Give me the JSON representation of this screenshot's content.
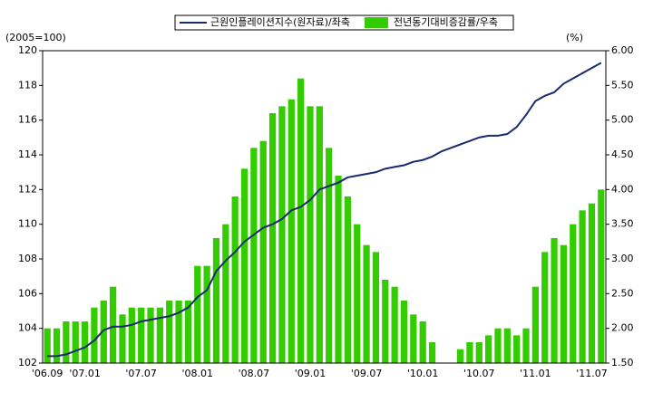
{
  "chart_data": {
    "type": "bar_line",
    "y_axis_label": "(2005=100)",
    "y2_axis_label": "(%)",
    "categories": [
      "'06.09",
      null,
      null,
      null,
      "'07.01",
      null,
      null,
      null,
      null,
      null,
      "'07.07",
      null,
      null,
      null,
      null,
      null,
      "'08.01",
      null,
      null,
      null,
      null,
      null,
      "'08.07",
      null,
      null,
      null,
      null,
      null,
      "'09.01",
      null,
      null,
      null,
      null,
      null,
      "'09.07",
      null,
      null,
      null,
      null,
      null,
      "'10.01",
      null,
      null,
      null,
      null,
      null,
      "'10.07",
      null,
      null,
      null,
      null,
      null,
      "'11.01",
      null,
      null,
      null,
      null,
      null,
      "'11.07",
      null
    ],
    "series": [
      {
        "name": "근원인플레이션지수(원자료)/좌축",
        "type": "line",
        "color": "#1a2a6c",
        "axis": "y",
        "values": [
          102.4,
          102.4,
          102.5,
          102.7,
          102.9,
          103.3,
          103.9,
          104.1,
          104.1,
          104.2,
          104.4,
          104.5,
          104.6,
          104.7,
          104.9,
          105.2,
          105.8,
          106.2,
          107.3,
          107.9,
          108.4,
          109.0,
          109.4,
          109.8,
          110.0,
          110.3,
          110.8,
          111.0,
          111.4,
          112.0,
          112.2,
          112.4,
          112.7,
          112.8,
          112.9,
          113.0,
          113.2,
          113.3,
          113.4,
          113.6,
          113.7,
          113.9,
          114.2,
          114.4,
          114.6,
          114.8,
          115.0,
          115.1,
          115.1,
          115.2,
          115.6,
          116.3,
          117.1,
          117.4,
          117.6,
          118.1,
          118.4,
          118.7,
          119.0,
          119.3
        ]
      },
      {
        "name": "전년동기대비증감률/우축",
        "type": "bar",
        "color": "#33cc00",
        "axis": "y2",
        "values": [
          2.0,
          2.0,
          2.1,
          2.1,
          2.1,
          2.3,
          2.4,
          2.6,
          2.2,
          2.3,
          2.3,
          2.3,
          2.3,
          2.4,
          2.4,
          2.4,
          2.9,
          2.9,
          3.3,
          3.5,
          3.9,
          4.3,
          4.6,
          4.7,
          5.1,
          5.2,
          5.3,
          5.6,
          5.2,
          5.2,
          4.6,
          4.2,
          3.9,
          3.5,
          3.2,
          3.1,
          2.7,
          2.6,
          2.4,
          2.2,
          2.1,
          1.8,
          1.5,
          1.5,
          1.7,
          1.8,
          1.8,
          1.9,
          2.0,
          2.0,
          1.9,
          2.0,
          2.6,
          3.1,
          3.3,
          3.2,
          3.5,
          3.7,
          3.8,
          4.0
        ]
      }
    ],
    "ylim": [
      102,
      120
    ],
    "yticks": [
      102,
      104,
      106,
      108,
      110,
      112,
      114,
      116,
      118,
      120
    ],
    "y2lim": [
      1.5,
      6.0
    ],
    "y2ticks": [
      {
        "value": 1.5,
        "label": "1.50"
      },
      {
        "value": 2.0,
        "label": "2.00"
      },
      {
        "value": 2.5,
        "label": "2.50"
      },
      {
        "value": 3.0,
        "label": "3.00"
      },
      {
        "value": 3.5,
        "label": "3.50"
      },
      {
        "value": 4.0,
        "label": "4.00"
      },
      {
        "value": 4.5,
        "label": "4.50"
      },
      {
        "value": 5.0,
        "label": "5.00"
      },
      {
        "value": 5.5,
        "label": "5.50"
      },
      {
        "value": 6.0,
        "label": "6.00"
      }
    ]
  }
}
